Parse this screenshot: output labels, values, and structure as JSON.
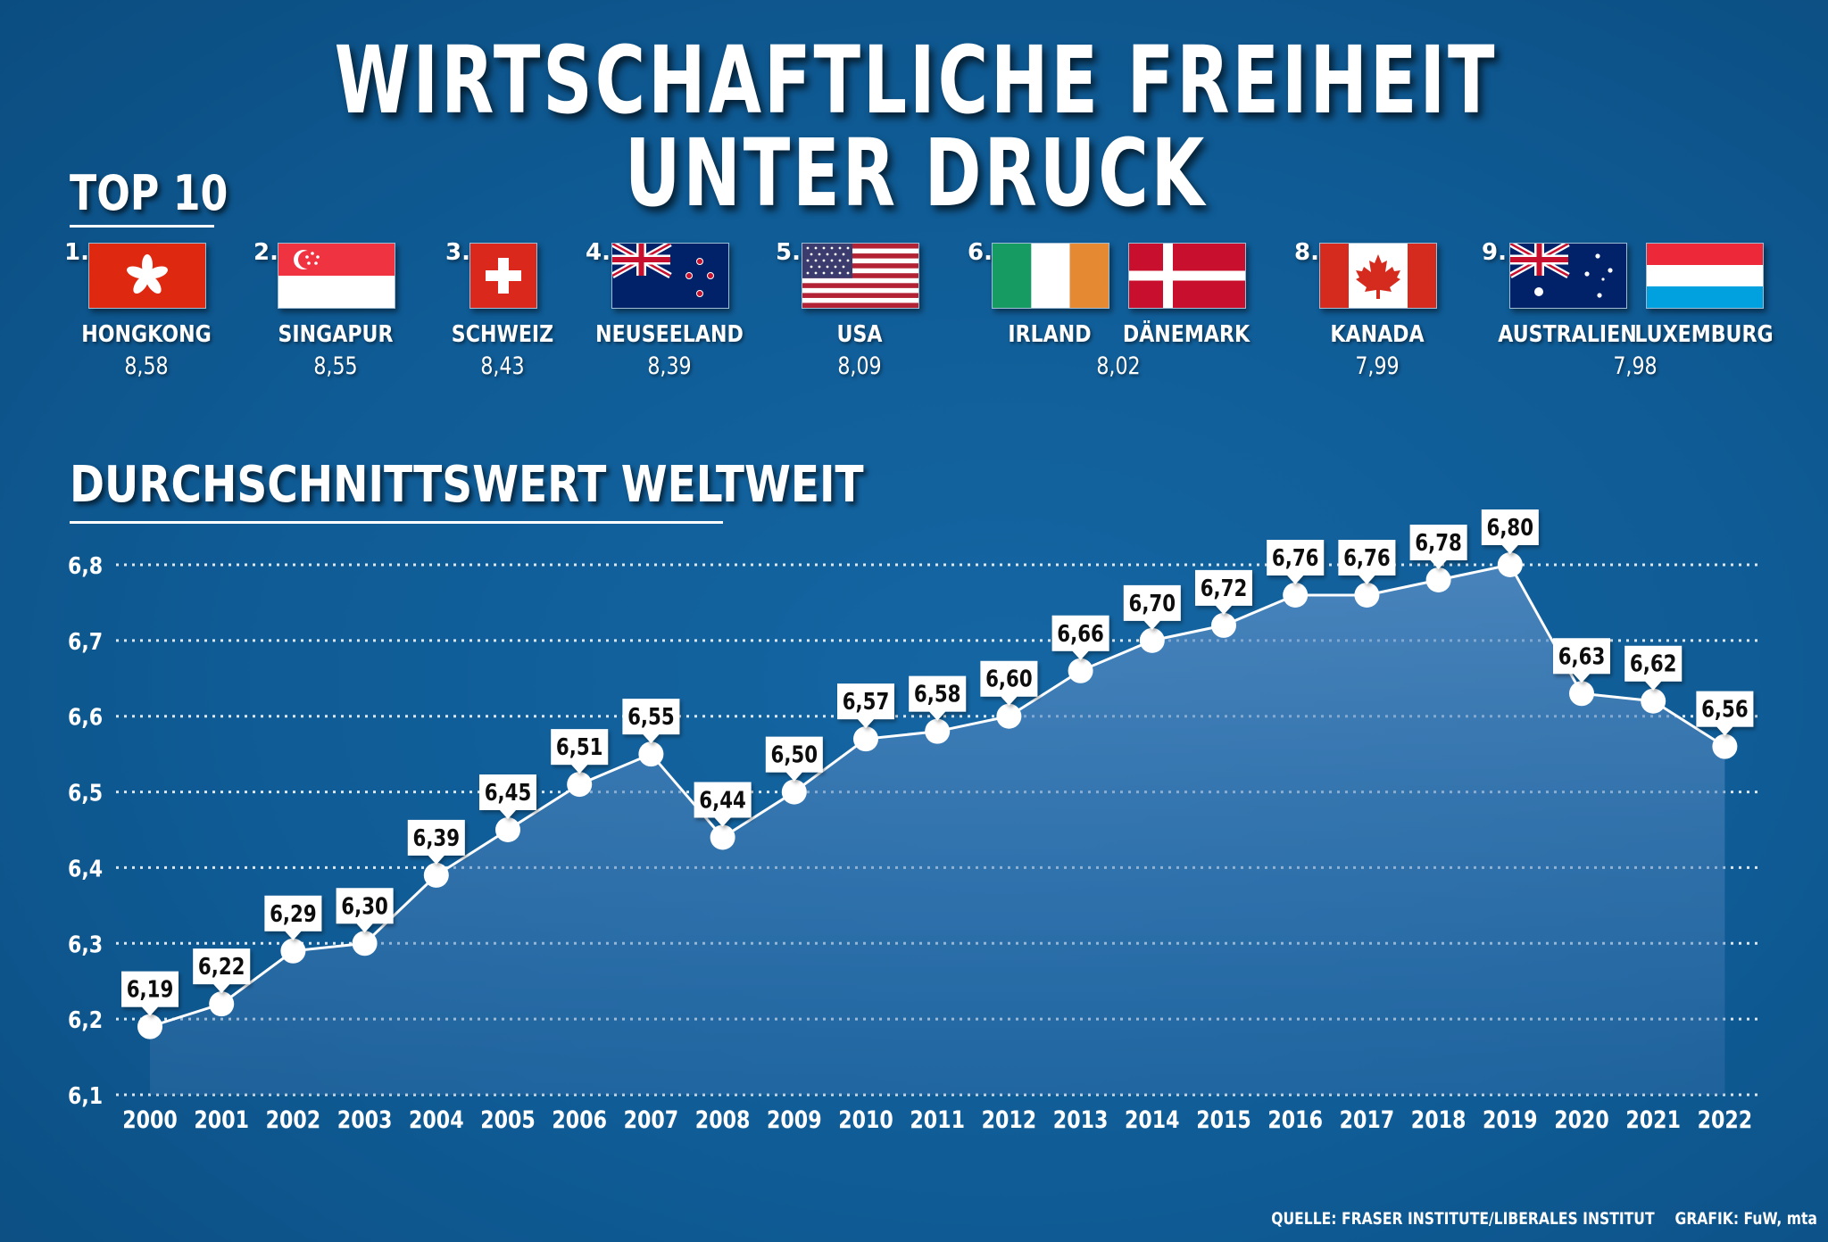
{
  "title": "WIRTSCHAFTLICHE FREIHEIT UNTER DRUCK",
  "top10": {
    "heading": "TOP 10",
    "ranks": [
      {
        "rank": "1.",
        "countries": [
          "HONGKONG"
        ],
        "flags": [
          "hongkong-flag"
        ],
        "score": "8,58"
      },
      {
        "rank": "2.",
        "countries": [
          "SINGAPUR"
        ],
        "flags": [
          "singapur-flag"
        ],
        "score": "8,55"
      },
      {
        "rank": "3.",
        "countries": [
          "SCHWEIZ"
        ],
        "flags": [
          "schweiz-flag"
        ],
        "score": "8,43"
      },
      {
        "rank": "4.",
        "countries": [
          "NEUSEELAND"
        ],
        "flags": [
          "neuseeland-flag"
        ],
        "score": "8,39"
      },
      {
        "rank": "5.",
        "countries": [
          "USA"
        ],
        "flags": [
          "usa-flag"
        ],
        "score": "8,09"
      },
      {
        "rank": "6.",
        "countries": [
          "IRLAND",
          "DÄNEMARK"
        ],
        "flags": [
          "irland-flag",
          "daenemark-flag"
        ],
        "score": "8,02"
      },
      {
        "rank": "8.",
        "countries": [
          "KANADA"
        ],
        "flags": [
          "kanada-flag"
        ],
        "score": "7,99"
      },
      {
        "rank": "9.",
        "countries": [
          "AUSTRALIEN",
          "LUXEMBURG"
        ],
        "flags": [
          "australien-flag",
          "luxemburg-flag"
        ],
        "score": "7,98"
      }
    ]
  },
  "chart_data": {
    "type": "area",
    "title": "DURCHSCHNITTSWERT WELTWEIT",
    "x": [
      "2000",
      "2001",
      "2002",
      "2003",
      "2004",
      "2005",
      "2006",
      "2007",
      "2008",
      "2009",
      "2010",
      "2011",
      "2012",
      "2013",
      "2014",
      "2015",
      "2016",
      "2017",
      "2018",
      "2019",
      "2020",
      "2021",
      "2022"
    ],
    "values": [
      6.19,
      6.22,
      6.29,
      6.3,
      6.39,
      6.45,
      6.51,
      6.55,
      6.44,
      6.5,
      6.57,
      6.58,
      6.6,
      6.66,
      6.7,
      6.72,
      6.76,
      6.76,
      6.78,
      6.8,
      6.63,
      6.62,
      6.56
    ],
    "data_labels": [
      "6,19",
      "6,22",
      "6,29",
      "6,30",
      "6,39",
      "6,45",
      "6,51",
      "6,55",
      "6,44",
      "6,50",
      "6,57",
      "6,58",
      "6,60",
      "6,66",
      "6,70",
      "6,72",
      "6,76",
      "6,76",
      "6,78",
      "6,80",
      "6,63",
      "6,62",
      "6,56"
    ],
    "ylim": [
      6.1,
      6.8
    ],
    "yticks": [
      6.1,
      6.2,
      6.3,
      6.4,
      6.5,
      6.6,
      6.7,
      6.8
    ],
    "ytick_labels": [
      "6,1",
      "6,2",
      "6,3",
      "6,4",
      "6,5",
      "6,6",
      "6,7",
      "6,8"
    ],
    "grid": true,
    "colors": {
      "line": "#ffffff",
      "fill": "#4a7fb5",
      "label_box": "#ffffff",
      "label_text": "#111111"
    }
  },
  "footer": {
    "source": "QUELLE: FRASER INSTITUTE/LIBERALES INSTITUT",
    "credit": "GRAFIK: FuW, mta"
  }
}
